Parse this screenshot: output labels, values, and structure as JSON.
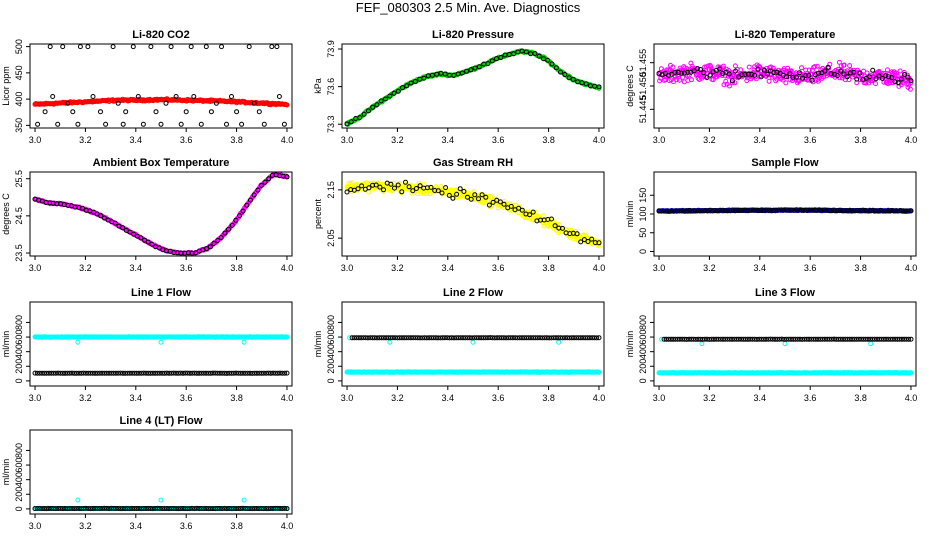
{
  "page": {
    "title": "FEF_080303  2.5 Min. Ave. Diagnostics"
  },
  "colors": {
    "black": "#000000",
    "red": "#ff0000",
    "green": "#00cc00",
    "magenta": "#ff00ff",
    "yellow": "#ffff00",
    "blue": "#0000ff",
    "cyan": "#00ffff"
  },
  "chart_data": [
    {
      "id": "co2",
      "type": "scatter",
      "title": "Li-820 CO2",
      "ylabel": "Licor ppm",
      "xlim": [
        2.98,
        4.02
      ],
      "ylim": [
        345,
        505
      ],
      "xticks": [
        3.0,
        3.2,
        3.4,
        3.6,
        3.8,
        4.0
      ],
      "yticks": [
        350,
        400,
        450,
        500
      ],
      "ytick_labels": [
        "350",
        "400",
        "450",
        "500"
      ],
      "series": [
        {
          "color": "red",
          "pattern": "band",
          "x0": 3.0,
          "x1": 4.0,
          "y": [
            390,
            392,
            394,
            396,
            398,
            398,
            399,
            398,
            397,
            396,
            394,
            392,
            390
          ],
          "noise": 2,
          "n": 280
        },
        {
          "color": "black",
          "pattern": "points",
          "points": [
            [
              3.01,
              352
            ],
            [
              3.04,
              376
            ],
            [
              3.06,
              500
            ],
            [
              3.07,
              405
            ],
            [
              3.09,
              352
            ],
            [
              3.11,
              500
            ],
            [
              3.13,
              392
            ],
            [
              3.15,
              376
            ],
            [
              3.17,
              352
            ],
            [
              3.18,
              500
            ],
            [
              3.21,
              500
            ],
            [
              3.23,
              405
            ],
            [
              3.26,
              376
            ],
            [
              3.28,
              352
            ],
            [
              3.31,
              500
            ],
            [
              3.33,
              392
            ],
            [
              3.35,
              352
            ],
            [
              3.36,
              376
            ],
            [
              3.39,
              500
            ],
            [
              3.41,
              405
            ],
            [
              3.43,
              352
            ],
            [
              3.46,
              500
            ],
            [
              3.48,
              376
            ],
            [
              3.5,
              352
            ],
            [
              3.52,
              392
            ],
            [
              3.54,
              500
            ],
            [
              3.56,
              405
            ],
            [
              3.58,
              352
            ],
            [
              3.6,
              376
            ],
            [
              3.62,
              500
            ],
            [
              3.63,
              405
            ],
            [
              3.66,
              352
            ],
            [
              3.68,
              500
            ],
            [
              3.7,
              376
            ],
            [
              3.72,
              392
            ],
            [
              3.74,
              500
            ],
            [
              3.76,
              352
            ],
            [
              3.78,
              405
            ],
            [
              3.8,
              376
            ],
            [
              3.82,
              352
            ],
            [
              3.85,
              500
            ],
            [
              3.87,
              392
            ],
            [
              3.89,
              376
            ],
            [
              3.91,
              352
            ],
            [
              3.94,
              500
            ],
            [
              3.96,
              500
            ],
            [
              3.97,
              405
            ],
            [
              3.99,
              352
            ]
          ]
        }
      ]
    },
    {
      "id": "pressure",
      "type": "scatter",
      "title": "Li-820 Pressure",
      "ylabel": "kPa",
      "xlim": [
        2.98,
        4.02
      ],
      "ylim": [
        73.27,
        73.94
      ],
      "xticks": [
        3.0,
        3.2,
        3.4,
        3.6,
        3.8,
        4.0
      ],
      "yticks": [
        73.3,
        73.6,
        73.9
      ],
      "ytick_labels": [
        "73.3",
        "73.6",
        "73.9"
      ],
      "series": [
        {
          "color": "green",
          "pattern": "band",
          "x0": 3.0,
          "x1": 4.0,
          "y": [
            73.3,
            73.36,
            73.44,
            73.51,
            73.58,
            73.64,
            73.68,
            73.7,
            73.69,
            73.72,
            73.76,
            73.81,
            73.85,
            73.88,
            73.87,
            73.82,
            73.73,
            73.66,
            73.62,
            73.59
          ],
          "noise": 0.008,
          "n": 260
        },
        {
          "color": "black",
          "pattern": "band",
          "x0": 3.0,
          "x1": 4.0,
          "y": [
            73.3,
            73.36,
            73.44,
            73.51,
            73.58,
            73.64,
            73.68,
            73.7,
            73.69,
            73.72,
            73.76,
            73.81,
            73.85,
            73.88,
            73.87,
            73.82,
            73.73,
            73.66,
            73.62,
            73.59
          ],
          "noise": 0.01,
          "n": 60
        }
      ]
    },
    {
      "id": "li820temp",
      "type": "scatter",
      "title": "Li-820 Temperature",
      "ylabel": "degrees C",
      "xlim": [
        2.98,
        4.02
      ],
      "ylim": [
        51.441,
        51.459
      ],
      "xticks": [
        3.0,
        3.2,
        3.4,
        3.6,
        3.8,
        4.0
      ],
      "yticks": [
        51.445,
        51.45,
        51.455
      ],
      "ytick_labels": [
        "51.445",
        "51.450",
        "51.455"
      ],
      "series": [
        {
          "color": "magenta",
          "pattern": "band",
          "x0": 3.0,
          "x1": 4.0,
          "y": [
            51.452,
            51.453,
            51.453,
            51.452,
            51.453,
            51.452,
            51.452,
            51.453,
            51.452,
            51.452,
            51.451
          ],
          "noise": 0.0022,
          "n": 420
        },
        {
          "color": "black",
          "pattern": "band",
          "x0": 3.0,
          "x1": 4.0,
          "y": [
            51.453,
            51.453,
            51.453,
            51.452,
            51.453,
            51.453,
            51.452,
            51.453,
            51.452,
            51.452,
            51.451
          ],
          "noise": 0.0016,
          "n": 80
        }
      ]
    },
    {
      "id": "ambient",
      "type": "scatter",
      "title": "Ambient Box Temperature",
      "ylabel": "degrees C",
      "xlim": [
        2.98,
        4.02
      ],
      "ylim": [
        23.42,
        25.68
      ],
      "xticks": [
        3.0,
        3.2,
        3.4,
        3.6,
        3.8,
        4.0
      ],
      "yticks": [
        23.5,
        24.5,
        25.5
      ],
      "ytick_labels": [
        "23.5",
        "24.5",
        "25.5"
      ],
      "series": [
        {
          "color": "magenta",
          "pattern": "band",
          "x0": 3.0,
          "x1": 4.0,
          "y": [
            24.95,
            24.85,
            24.82,
            24.75,
            24.65,
            24.5,
            24.3,
            24.1,
            23.9,
            23.7,
            23.55,
            23.5,
            23.5,
            23.62,
            23.9,
            24.3,
            24.8,
            25.3,
            25.62,
            25.55
          ],
          "noise": 0.02,
          "n": 300
        },
        {
          "color": "black",
          "pattern": "band",
          "x0": 3.0,
          "x1": 4.0,
          "y": [
            24.95,
            24.85,
            24.82,
            24.75,
            24.65,
            24.5,
            24.3,
            24.1,
            23.9,
            23.7,
            23.55,
            23.5,
            23.5,
            23.62,
            23.9,
            24.3,
            24.8,
            25.3,
            25.62,
            25.55
          ],
          "noise": 0.02,
          "n": 70
        }
      ]
    },
    {
      "id": "rh",
      "type": "scatter",
      "title": "Gas Stream RH",
      "ylabel": "percent",
      "xlim": [
        2.98,
        4.02
      ],
      "ylim": [
        2.013,
        2.187
      ],
      "xticks": [
        3.0,
        3.2,
        3.4,
        3.6,
        3.8,
        4.0
      ],
      "yticks": [
        2.05,
        2.15
      ],
      "ytick_labels": [
        "2.05",
        "2.15"
      ],
      "series": [
        {
          "color": "yellow",
          "pattern": "band",
          "x0": 3.0,
          "x1": 4.0,
          "y": [
            2.155,
            2.158,
            2.156,
            2.154,
            2.15,
            2.146,
            2.14,
            2.132,
            2.12,
            2.105,
            2.088,
            2.07,
            2.052,
            2.038
          ],
          "noise": 0.012,
          "n": 420
        },
        {
          "color": "black",
          "pattern": "band",
          "x0": 3.0,
          "x1": 4.0,
          "y": [
            2.155,
            2.158,
            2.156,
            2.154,
            2.15,
            2.146,
            2.14,
            2.132,
            2.12,
            2.105,
            2.088,
            2.07,
            2.052,
            2.038
          ],
          "noise": 0.012,
          "n": 70
        }
      ]
    },
    {
      "id": "sample",
      "type": "scatter",
      "title": "Sample Flow",
      "ylabel": "ml/min",
      "xlim": [
        2.98,
        4.02
      ],
      "ylim": [
        -12,
        212
      ],
      "xticks": [
        3.0,
        3.2,
        3.4,
        3.6,
        3.8,
        4.0
      ],
      "yticks": [
        0,
        50,
        100,
        150
      ],
      "ytick_labels": [
        "0",
        "50",
        "100",
        "150"
      ],
      "series": [
        {
          "color": "blue",
          "pattern": "band",
          "x0": 3.0,
          "x1": 4.0,
          "y": [
            108,
            109,
            110,
            110,
            109,
            108
          ],
          "noise": 1.5,
          "n": 300
        },
        {
          "color": "black",
          "pattern": "band",
          "x0": 3.0,
          "x1": 4.0,
          "y": [
            108,
            109,
            110,
            110,
            109,
            108
          ],
          "noise": 1.5,
          "n": 100
        }
      ]
    },
    {
      "id": "line1",
      "type": "scatter",
      "title": "Line 1 Flow",
      "ylabel": "ml/min",
      "xlim": [
        2.98,
        4.02
      ],
      "ylim": [
        -70,
        1080
      ],
      "xticks": [
        3.0,
        3.2,
        3.4,
        3.6,
        3.8,
        4.0
      ],
      "yticks": [
        0,
        200,
        400,
        600,
        800
      ],
      "ytick_labels": [
        "0",
        "200",
        "400",
        "600",
        "800"
      ],
      "series": [
        {
          "color": "cyan",
          "pattern": "band",
          "x0": 3.0,
          "x1": 4.0,
          "y": [
            600,
            600
          ],
          "noise": 5,
          "n": 320
        },
        {
          "color": "cyan",
          "pattern": "points",
          "points": [
            [
              3.17,
              530
            ],
            [
              3.5,
              530
            ],
            [
              3.83,
              530
            ]
          ]
        },
        {
          "color": "black",
          "pattern": "band",
          "x0": 3.0,
          "x1": 4.0,
          "y": [
            105,
            105
          ],
          "noise": 2,
          "n": 110
        }
      ]
    },
    {
      "id": "line2",
      "type": "scatter",
      "title": "Line 2 Flow",
      "ylabel": "ml/min",
      "xlim": [
        2.98,
        4.02
      ],
      "ylim": [
        -70,
        1080
      ],
      "xticks": [
        3.0,
        3.2,
        3.4,
        3.6,
        3.8,
        4.0
      ],
      "yticks": [
        0,
        200,
        400,
        600,
        800
      ],
      "ytick_labels": [
        "0",
        "200",
        "400",
        "600",
        "800"
      ],
      "series": [
        {
          "color": "cyan",
          "pattern": "band",
          "x0": 3.0,
          "x1": 4.0,
          "y": [
            120,
            120
          ],
          "noise": 5,
          "n": 320
        },
        {
          "color": "cyan",
          "pattern": "points",
          "points": [
            [
              3.01,
              590
            ],
            [
              3.17,
              530
            ],
            [
              3.5,
              530
            ],
            [
              3.84,
              530
            ]
          ]
        },
        {
          "color": "black",
          "pattern": "band",
          "x0": 3.02,
          "x1": 4.0,
          "y": [
            590,
            590
          ],
          "noise": 2,
          "n": 110
        }
      ]
    },
    {
      "id": "line3",
      "type": "scatter",
      "title": "Line 3 Flow",
      "ylabel": "ml/min",
      "xlim": [
        2.98,
        4.02
      ],
      "ylim": [
        -70,
        1080
      ],
      "xticks": [
        3.0,
        3.2,
        3.4,
        3.6,
        3.8,
        4.0
      ],
      "yticks": [
        0,
        200,
        400,
        600,
        800
      ],
      "ytick_labels": [
        "0",
        "200",
        "400",
        "600",
        "800"
      ],
      "series": [
        {
          "color": "cyan",
          "pattern": "band",
          "x0": 3.0,
          "x1": 4.0,
          "y": [
            110,
            110
          ],
          "noise": 5,
          "n": 320
        },
        {
          "color": "cyan",
          "pattern": "points",
          "points": [
            [
              3.01,
              570
            ],
            [
              3.17,
              510
            ],
            [
              3.5,
              510
            ],
            [
              3.84,
              510
            ]
          ]
        },
        {
          "color": "black",
          "pattern": "band",
          "x0": 3.02,
          "x1": 4.0,
          "y": [
            570,
            570
          ],
          "noise": 2,
          "n": 110
        }
      ]
    },
    {
      "id": "line4",
      "type": "scatter",
      "title": "Line 4 (LT) Flow",
      "ylabel": "ml/min",
      "xlim": [
        2.98,
        4.02
      ],
      "ylim": [
        -70,
        1080
      ],
      "xticks": [
        3.0,
        3.2,
        3.4,
        3.6,
        3.8,
        4.0
      ],
      "yticks": [
        0,
        200,
        400,
        600,
        800
      ],
      "ytick_labels": [
        "0",
        "200",
        "400",
        "600",
        "800"
      ],
      "series": [
        {
          "color": "cyan",
          "pattern": "band",
          "x0": 3.0,
          "x1": 4.0,
          "y": [
            5,
            5
          ],
          "noise": 3,
          "n": 320
        },
        {
          "color": "cyan",
          "pattern": "points",
          "points": [
            [
              3.17,
              120
            ],
            [
              3.5,
              120
            ],
            [
              3.83,
              120
            ]
          ]
        },
        {
          "color": "black",
          "pattern": "band",
          "x0": 3.0,
          "x1": 4.0,
          "y": [
            5,
            5
          ],
          "noise": 2,
          "n": 110
        }
      ]
    }
  ]
}
